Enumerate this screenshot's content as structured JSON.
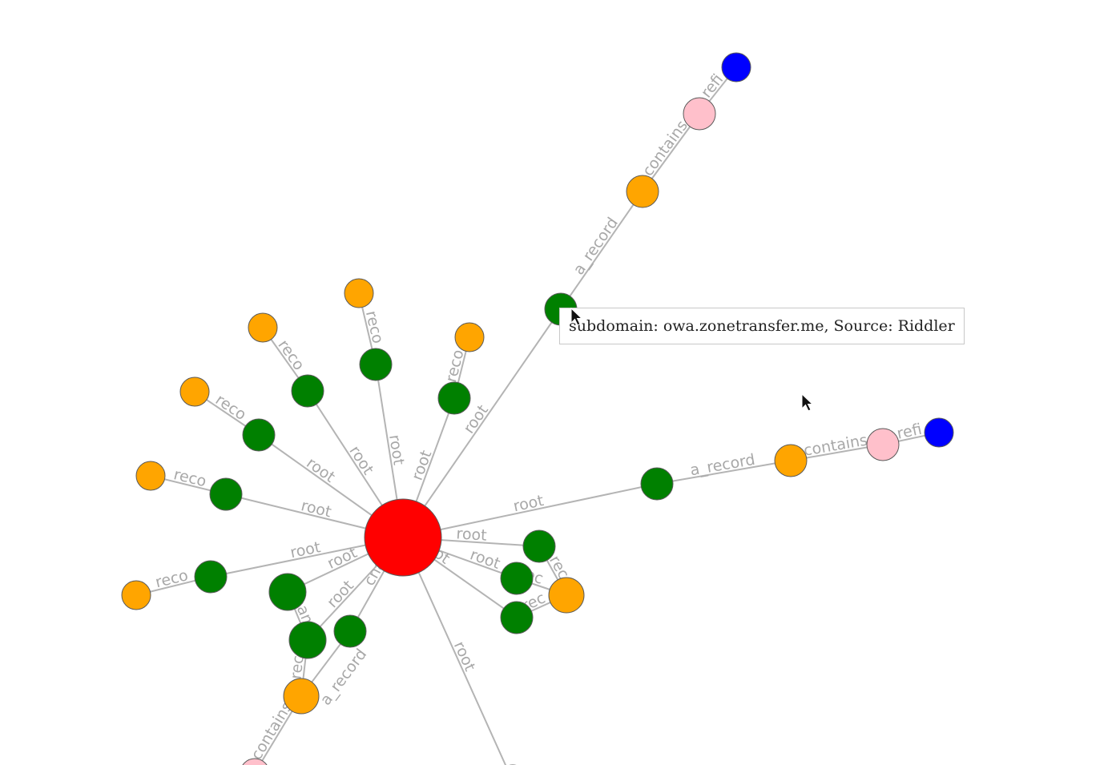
{
  "colors": {
    "root": "#ff0000",
    "subdomain": "#008000",
    "ip": "#ffa500",
    "netblock": "#ffc0cb",
    "asn": "#0000ff",
    "edge": "#b4b4b4",
    "label": "#a8a8a8"
  },
  "nodes": [
    {
      "id": "root",
      "type": "root"
    },
    {
      "id": "g1",
      "type": "subdomain"
    },
    {
      "id": "o1",
      "type": "ip"
    },
    {
      "id": "p1",
      "type": "netblock"
    },
    {
      "id": "b1",
      "type": "asn"
    },
    {
      "id": "g2",
      "type": "subdomain"
    },
    {
      "id": "o2",
      "type": "ip"
    },
    {
      "id": "p2",
      "type": "netblock"
    },
    {
      "id": "b2",
      "type": "asn"
    },
    {
      "id": "g3",
      "type": "subdomain"
    },
    {
      "id": "o3",
      "type": "ip"
    },
    {
      "id": "g4",
      "type": "subdomain"
    },
    {
      "id": "o4",
      "type": "ip"
    },
    {
      "id": "g5",
      "type": "subdomain"
    },
    {
      "id": "o5",
      "type": "ip"
    },
    {
      "id": "g6",
      "type": "subdomain"
    },
    {
      "id": "o6",
      "type": "ip"
    },
    {
      "id": "g7",
      "type": "subdomain"
    },
    {
      "id": "o7",
      "type": "ip"
    },
    {
      "id": "g8",
      "type": "subdomain"
    },
    {
      "id": "o8",
      "type": "ip"
    },
    {
      "id": "g9",
      "type": "subdomain"
    },
    {
      "id": "g10",
      "type": "subdomain"
    },
    {
      "id": "g11",
      "type": "subdomain"
    },
    {
      "id": "o9",
      "type": "ip"
    },
    {
      "id": "p3",
      "type": "netblock"
    },
    {
      "id": "g12",
      "type": "subdomain"
    },
    {
      "id": "g13",
      "type": "subdomain"
    },
    {
      "id": "g14",
      "type": "subdomain"
    },
    {
      "id": "o10",
      "type": "ip"
    },
    {
      "id": "x1",
      "type": "subdomain"
    }
  ],
  "edges": [
    {
      "from": "root",
      "to": "g1",
      "label": "root"
    },
    {
      "from": "g1",
      "to": "o1",
      "label": "a_record"
    },
    {
      "from": "o1",
      "to": "p1",
      "label": "contains"
    },
    {
      "from": "p1",
      "to": "b1",
      "label": "refi"
    },
    {
      "from": "root",
      "to": "g2",
      "label": "root"
    },
    {
      "from": "g2",
      "to": "o2",
      "label": "a_record"
    },
    {
      "from": "o2",
      "to": "p2",
      "label": "contains"
    },
    {
      "from": "p2",
      "to": "b2",
      "label": "refi"
    },
    {
      "from": "root",
      "to": "g3",
      "label": "root"
    },
    {
      "from": "g3",
      "to": "o3",
      "label": "reco"
    },
    {
      "from": "root",
      "to": "g4",
      "label": "root"
    },
    {
      "from": "g4",
      "to": "o4",
      "label": "reco"
    },
    {
      "from": "root",
      "to": "g5",
      "label": "root"
    },
    {
      "from": "g5",
      "to": "o5",
      "label": "reco"
    },
    {
      "from": "root",
      "to": "g6",
      "label": "root"
    },
    {
      "from": "g6",
      "to": "o6",
      "label": "reco"
    },
    {
      "from": "root",
      "to": "g7",
      "label": "root"
    },
    {
      "from": "g7",
      "to": "o7",
      "label": "reco"
    },
    {
      "from": "root",
      "to": "g8",
      "label": "root"
    },
    {
      "from": "g8",
      "to": "o8",
      "label": "reco"
    },
    {
      "from": "root",
      "to": "g9",
      "label": "root"
    },
    {
      "from": "g9",
      "to": "g10",
      "label": "cname"
    },
    {
      "from": "root",
      "to": "g10",
      "label": "root"
    },
    {
      "from": "root",
      "to": "g11",
      "label": "cname"
    },
    {
      "from": "g10",
      "to": "o9",
      "label": "rec"
    },
    {
      "from": "g11",
      "to": "o9",
      "label": "a_record"
    },
    {
      "from": "o9",
      "to": "p3",
      "label": "contains"
    },
    {
      "from": "root",
      "to": "g12",
      "label": "root"
    },
    {
      "from": "root",
      "to": "g13",
      "label": "root"
    },
    {
      "from": "root",
      "to": "g14",
      "label": "root"
    },
    {
      "from": "g12",
      "to": "o10",
      "label": "rec"
    },
    {
      "from": "g13",
      "to": "o10",
      "label": "rec"
    },
    {
      "from": "g14",
      "to": "o10",
      "label": "rec"
    },
    {
      "from": "root",
      "to": "x1",
      "label": "root"
    }
  ],
  "tooltip": {
    "text": "subdomain: owa.zonetransfer.me, Source: Riddler"
  }
}
